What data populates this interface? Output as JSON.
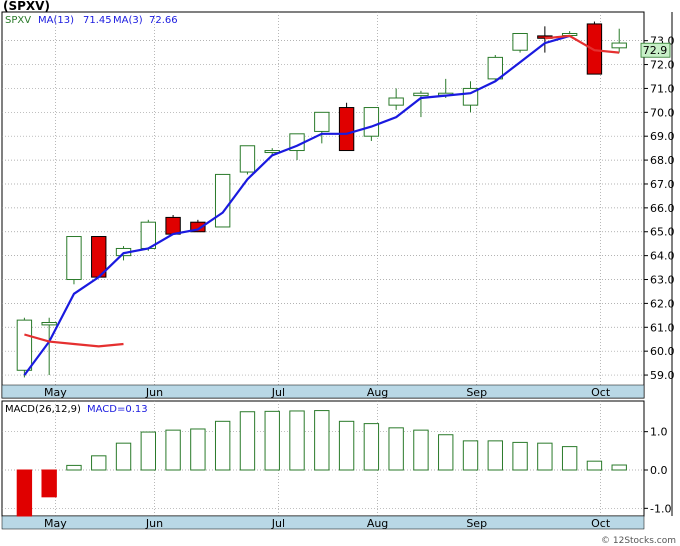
{
  "header": {
    "title": "(SPXV)"
  },
  "footer": {
    "credit": "© 12Stocks.com"
  },
  "colors": {
    "up": "#2a7a2a",
    "down": "#e00000",
    "ma_short": "#e53030",
    "ma_long": "#1a1adf",
    "macd_bar": "#2a7a2a",
    "axis_band": "#b9d8e6",
    "grid": "#9a9a9a",
    "last_price_box": "#c8f0c8"
  },
  "chart_data": [
    {
      "type": "candlestick",
      "ticker": "SPXV",
      "legend": {
        "ticker": "SPXV",
        "ma_long_label": "MA(13)",
        "ma_long_value": "71.45",
        "ma_short_label": "MA(3)",
        "ma_short_value": "72.66"
      },
      "last_price": "72.9",
      "x_tick_labels": [
        "May",
        "Jun",
        "Jul",
        "Aug",
        "Sep",
        "Oct"
      ],
      "x_tick_positions": [
        1.25,
        5.25,
        10.25,
        14.25,
        18.25,
        23.25
      ],
      "y_tick_labels": [
        "59.0",
        "60.0",
        "61.0",
        "62.0",
        "63.0",
        "64.0",
        "65.0",
        "66.0",
        "67.0",
        "68.0",
        "69.0",
        "70.0",
        "71.0",
        "72.0",
        "73.0"
      ],
      "ylim": [
        58.5,
        74.2
      ],
      "xlim": [
        -0.5,
        25
      ],
      "grid": true,
      "candles": [
        {
          "o": 59.2,
          "h": 61.4,
          "l": 58.9,
          "c": 61.3
        },
        {
          "o": 61.1,
          "h": 61.4,
          "l": 59.0,
          "c": 61.2
        },
        {
          "o": 63.0,
          "h": 64.8,
          "l": 62.8,
          "c": 64.8
        },
        {
          "o": 64.8,
          "h": 64.8,
          "l": 63.1,
          "c": 63.1
        },
        {
          "o": 64.0,
          "h": 64.4,
          "l": 63.8,
          "c": 64.3
        },
        {
          "o": 64.3,
          "h": 65.5,
          "l": 64.2,
          "c": 65.4
        },
        {
          "o": 65.6,
          "h": 65.7,
          "l": 64.9,
          "c": 64.9
        },
        {
          "o": 65.4,
          "h": 65.5,
          "l": 65.0,
          "c": 65.0
        },
        {
          "o": 65.2,
          "h": 67.4,
          "l": 65.2,
          "c": 67.4
        },
        {
          "o": 67.5,
          "h": 68.6,
          "l": 67.4,
          "c": 68.6
        },
        {
          "o": 68.4,
          "h": 68.5,
          "l": 68.2,
          "c": 68.4
        },
        {
          "o": 68.4,
          "h": 69.1,
          "l": 68.0,
          "c": 69.1
        },
        {
          "o": 69.2,
          "h": 70.0,
          "l": 68.7,
          "c": 70.0
        },
        {
          "o": 70.2,
          "h": 70.4,
          "l": 68.4,
          "c": 68.4
        },
        {
          "o": 69.0,
          "h": 70.2,
          "l": 68.8,
          "c": 70.2
        },
        {
          "o": 70.3,
          "h": 71.0,
          "l": 70.1,
          "c": 70.6
        },
        {
          "o": 70.7,
          "h": 70.9,
          "l": 69.8,
          "c": 70.8
        },
        {
          "o": 70.8,
          "h": 71.4,
          "l": 70.6,
          "c": 70.8
        },
        {
          "o": 70.3,
          "h": 71.3,
          "l": 70.0,
          "c": 71.0
        },
        {
          "o": 71.4,
          "h": 72.4,
          "l": 71.3,
          "c": 72.3
        },
        {
          "o": 72.6,
          "h": 73.3,
          "l": 72.5,
          "c": 73.3
        },
        {
          "o": 73.2,
          "h": 73.6,
          "l": 72.5,
          "c": 73.1
        },
        {
          "o": 73.3,
          "h": 73.4,
          "l": 73.2,
          "c": 73.3
        },
        {
          "o": 73.7,
          "h": 73.8,
          "l": 71.6,
          "c": 71.6
        },
        {
          "o": 72.7,
          "h": 73.5,
          "l": 72.5,
          "c": 72.9
        }
      ],
      "ma_short": [
        60.7,
        60.4,
        60.3,
        60.2,
        60.3,
        null,
        null,
        null,
        null,
        null,
        null,
        null,
        null,
        null,
        null,
        null,
        null,
        null,
        null,
        null,
        null,
        73.1,
        73.2,
        72.6,
        72.5
      ],
      "ma_long": [
        59.0,
        60.4,
        62.4,
        63.1,
        64.1,
        64.3,
        64.9,
        65.1,
        65.8,
        67.2,
        68.2,
        68.6,
        69.1,
        69.1,
        69.4,
        69.8,
        70.6,
        70.7,
        70.8,
        71.3,
        72.1,
        72.9,
        73.2,
        null,
        null
      ],
      "ma_long_extra": [
        [
          0.0,
          58.9
        ],
        [
          1.0,
          60.4
        ],
        [
          1.0,
          60.4
        ]
      ]
    },
    {
      "type": "bar",
      "legend": {
        "label": "MACD(26,12,9)",
        "value_label": "MACD=0.13"
      },
      "x_tick_labels": [
        "May",
        "Jun",
        "Jul",
        "Aug",
        "Sep",
        "Oct"
      ],
      "y_tick_labels": [
        "1.0",
        "0.0",
        "-1.0"
      ],
      "ylim": [
        -1.2,
        1.8
      ],
      "values": [
        -1.25,
        -0.7,
        0.12,
        0.37,
        0.7,
        0.99,
        1.04,
        1.07,
        1.27,
        1.52,
        1.53,
        1.54,
        1.55,
        1.27,
        1.21,
        1.1,
        1.04,
        0.92,
        0.76,
        0.76,
        0.72,
        0.7,
        0.61,
        0.23,
        0.13
      ]
    }
  ]
}
